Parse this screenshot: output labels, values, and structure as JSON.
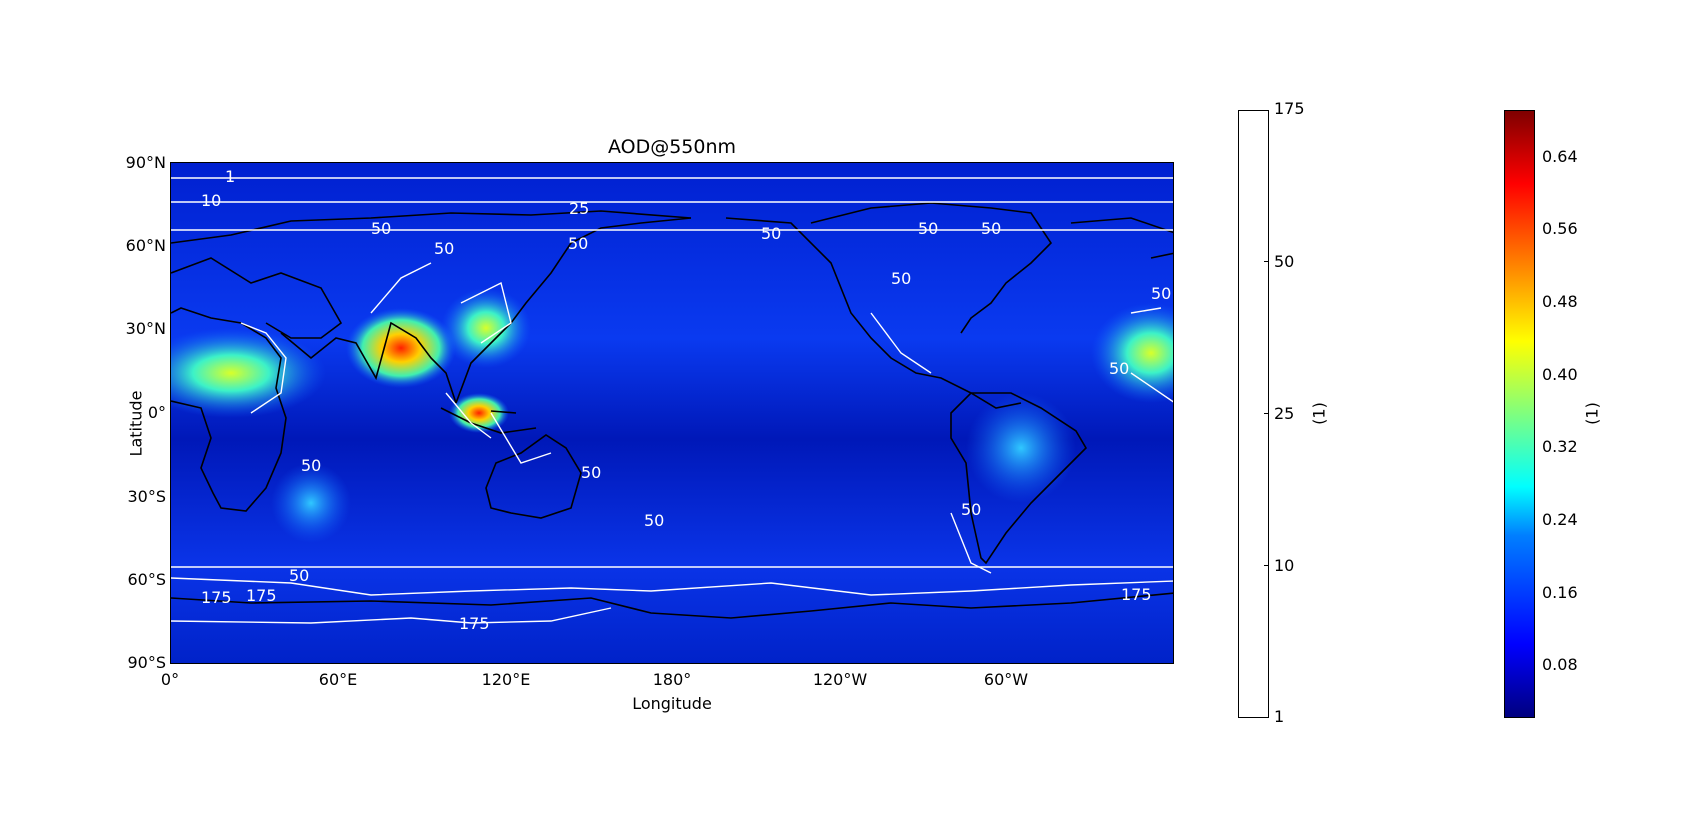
{
  "title": "AOD@550nm",
  "xlabel": "Longitude",
  "ylabel": "Latitude",
  "lat_ticks": [
    "90°N",
    "60°N",
    "30°N",
    "0°",
    "30°S",
    "60°S",
    "90°S"
  ],
  "lon_ticks": [
    "0°",
    "60°E",
    "120°E",
    "180°",
    "120°W",
    "60°W"
  ],
  "contour_colorbar": {
    "unit": "(1)",
    "ticks": [
      "175",
      "50",
      "25",
      "10",
      "1"
    ]
  },
  "aod_colorbar": {
    "unit": "(1)",
    "ticks": [
      "0.64",
      "0.56",
      "0.48",
      "0.40",
      "0.32",
      "0.24",
      "0.16",
      "0.08"
    ]
  },
  "contour_labels": [
    "1",
    "10",
    "25",
    "50",
    "50",
    "50",
    "50",
    "50",
    "50",
    "50",
    "50",
    "50",
    "50",
    "50",
    "50",
    "50",
    "50",
    "175",
    "175",
    "175",
    "175"
  ],
  "colors": {
    "background_field": "#0a2fd8",
    "coastline": "#000000",
    "contour": "#ffffff"
  }
}
